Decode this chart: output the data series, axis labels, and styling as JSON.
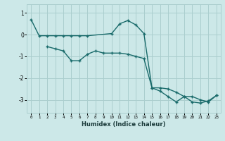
{
  "xlabel": "Humidex (Indice chaleur)",
  "ylabel": "",
  "bg_color": "#cce8e8",
  "grid_color": "#aacece",
  "line_color": "#1a6b6b",
  "xlim": [
    -0.5,
    23.5
  ],
  "ylim": [
    -3.6,
    1.4
  ],
  "yticks": [
    -3,
    -2,
    -1,
    0,
    1
  ],
  "xticks": [
    0,
    1,
    2,
    3,
    4,
    5,
    6,
    7,
    8,
    9,
    10,
    11,
    12,
    13,
    14,
    15,
    16,
    17,
    18,
    19,
    20,
    21,
    22,
    23
  ],
  "line1_x": [
    0,
    1,
    2,
    3,
    4,
    5,
    6,
    7,
    10,
    11,
    12,
    13,
    14,
    15,
    16,
    17,
    18,
    19,
    20,
    21,
    22,
    23
  ],
  "line1_y": [
    0.7,
    -0.05,
    -0.05,
    -0.05,
    -0.05,
    -0.05,
    -0.05,
    -0.05,
    0.05,
    0.5,
    0.65,
    0.45,
    0.05,
    -2.45,
    -2.6,
    -2.85,
    -3.1,
    -2.85,
    -3.1,
    -3.15,
    -3.05,
    -2.8
  ],
  "line2_x": [
    2,
    3,
    4,
    5,
    6,
    7,
    8,
    9,
    10,
    11,
    12,
    13,
    14,
    15,
    16,
    17,
    18,
    19,
    20,
    21,
    22,
    23
  ],
  "line2_y": [
    -0.55,
    -0.65,
    -0.75,
    -1.2,
    -1.2,
    -0.9,
    -0.75,
    -0.85,
    -0.85,
    -0.85,
    -0.9,
    -1.0,
    -1.1,
    -2.45,
    -2.45,
    -2.5,
    -2.65,
    -2.85,
    -2.85,
    -3.0,
    -3.1,
    -2.8
  ]
}
